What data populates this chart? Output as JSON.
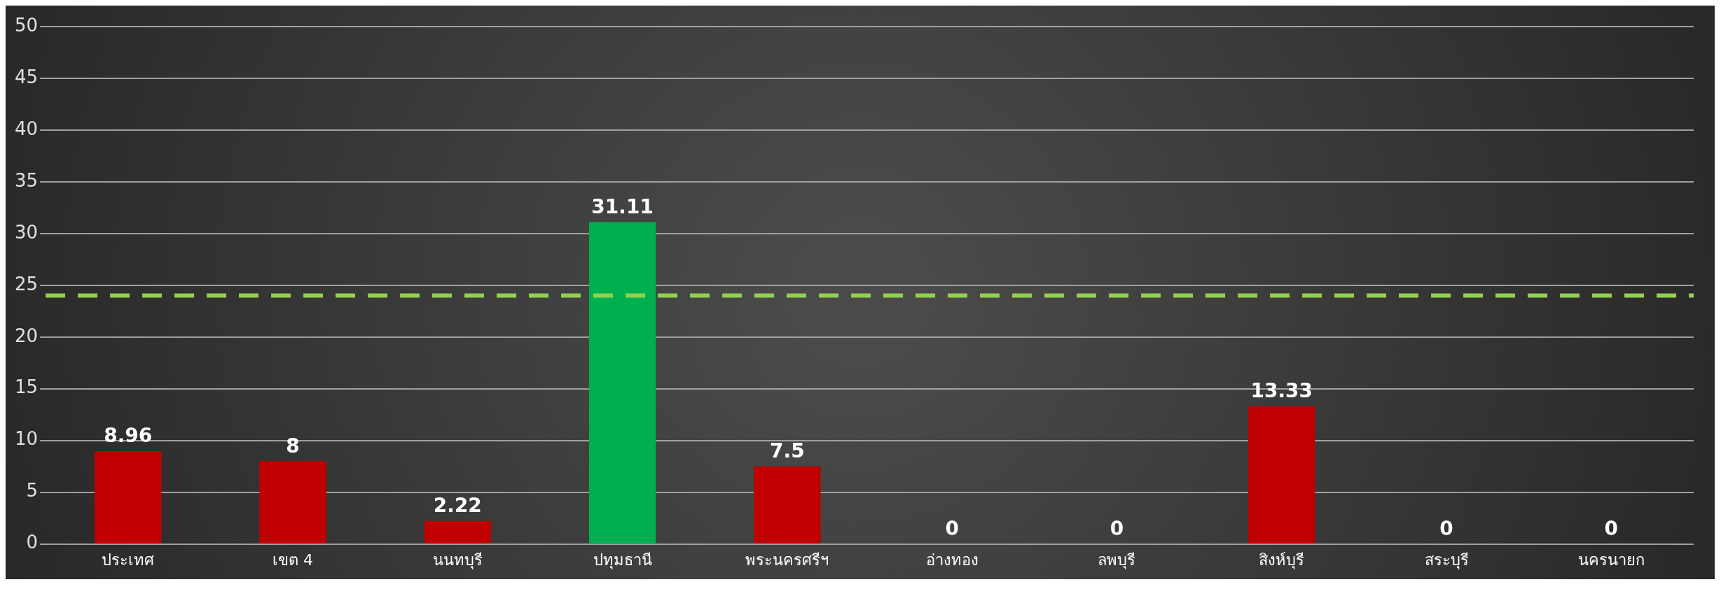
{
  "chart_data": {
    "type": "bar",
    "categories": [
      "ประเทศ",
      "เขต 4",
      "นนทบุรี",
      "ปทุมธานี",
      "พระนครศรีฯ",
      "อ่างทอง",
      "ลพบุรี",
      "สิงห์บุรี",
      "สระบุรี",
      "นครนายก"
    ],
    "values": [
      8.96,
      8,
      2.22,
      31.11,
      7.5,
      0,
      0,
      13.33,
      0,
      0
    ],
    "colors": [
      "#c00000",
      "#c00000",
      "#c00000",
      "#00b050",
      "#c00000",
      "#c00000",
      "#c00000",
      "#c00000",
      "#c00000",
      "#c00000"
    ],
    "ylim": [
      0,
      50
    ],
    "yticks": [
      0,
      5,
      10,
      15,
      20,
      25,
      30,
      35,
      40,
      45,
      50
    ],
    "grid": true,
    "legend": false,
    "data_labels": true,
    "ref_lines": [
      {
        "axis": "y",
        "value": 24,
        "color": "#92d050",
        "line_style": "dashed"
      }
    ]
  }
}
